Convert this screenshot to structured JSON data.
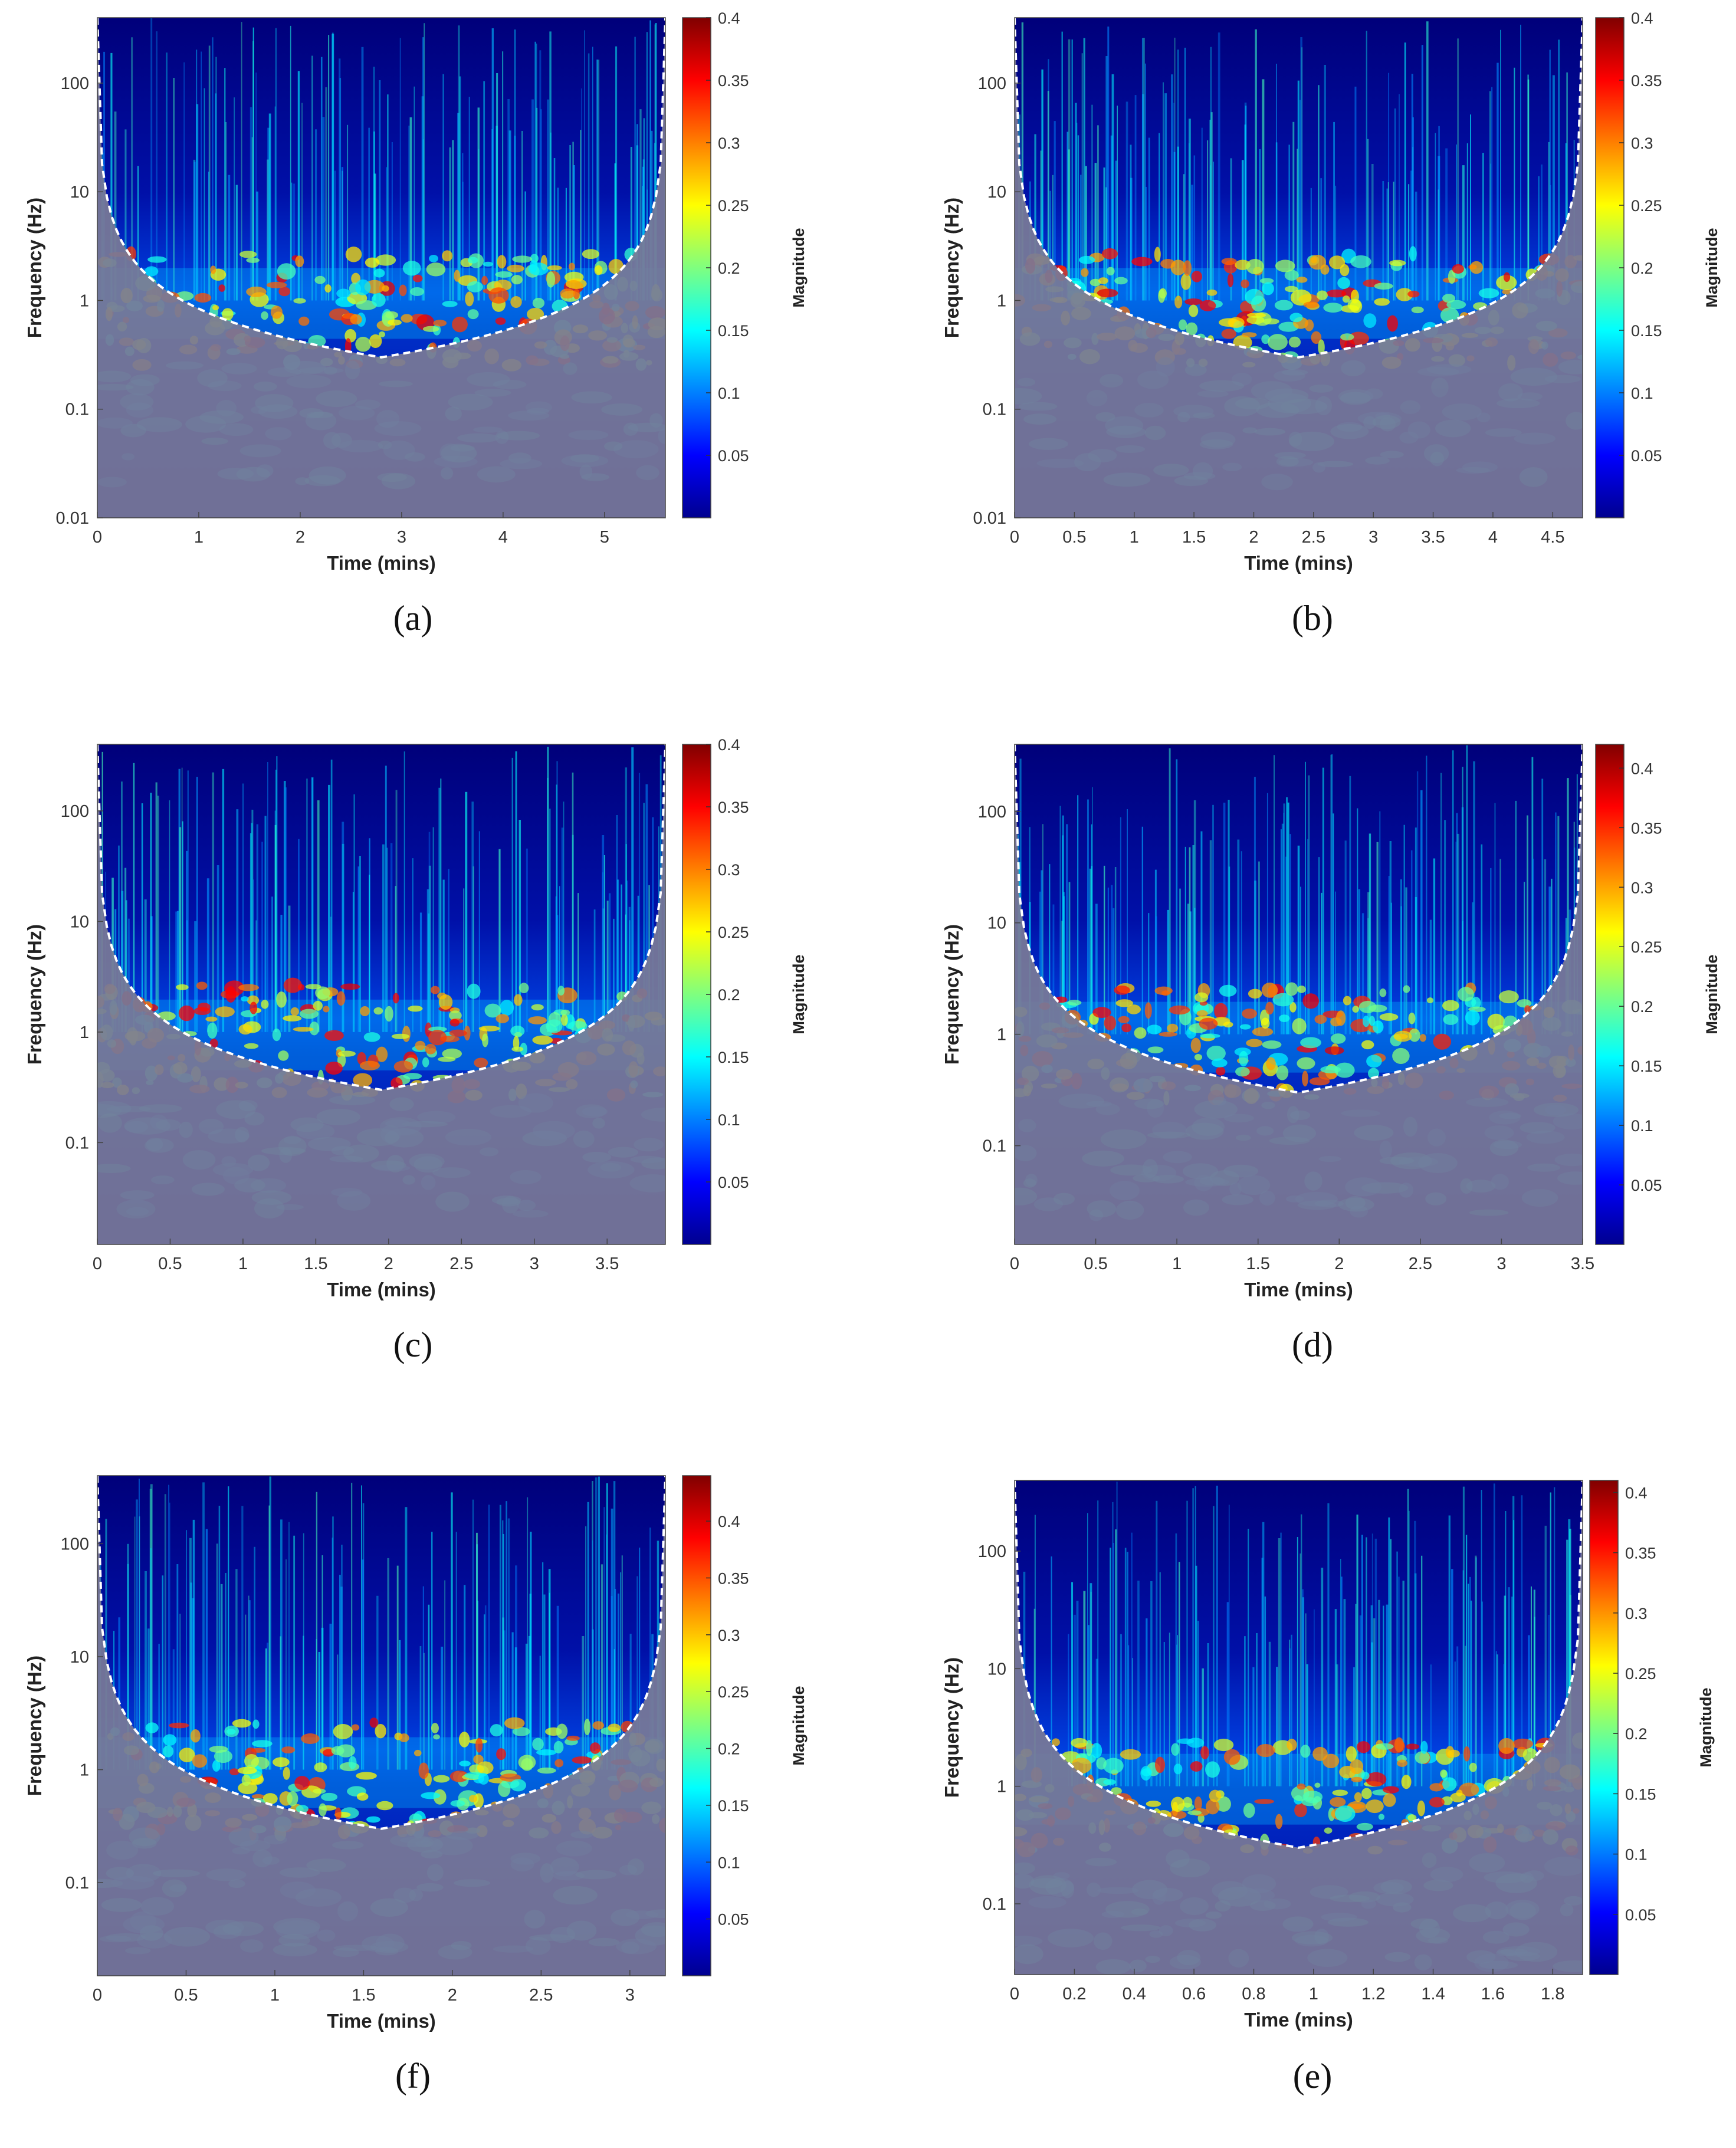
{
  "chart_data": [
    {
      "type": "heatmap",
      "caption": "(a)",
      "xlabel": "Time (mins)",
      "ylabel": "Frequency (Hz)",
      "colorbar_label": "Magnitude",
      "x_ticks": [
        "0",
        "1",
        "2",
        "3",
        "4",
        "5"
      ],
      "x_tick_values": [
        0,
        1,
        2,
        3,
        4,
        5
      ],
      "xlim": [
        0,
        5.6
      ],
      "y_scale": "log",
      "y_ticks": [
        "100",
        "10",
        "1",
        "0.1",
        "0.01"
      ],
      "y_tick_values": [
        100,
        10,
        1,
        0.1,
        0.01
      ],
      "ylim": [
        0.01,
        400
      ],
      "colorbar_ticks": [
        "0.4",
        "0.35",
        "0.3",
        "0.25",
        "0.2",
        "0.15",
        "0.1",
        "0.05"
      ],
      "colorbar_tick_values": [
        0.4,
        0.35,
        0.3,
        0.25,
        0.2,
        0.15,
        0.1,
        0.05
      ],
      "clim": [
        0,
        0.4
      ],
      "colormap": "jet",
      "cone_of_influence": "dashed white line, shaded gray outside"
    },
    {
      "type": "heatmap",
      "caption": "(b)",
      "xlabel": "Time (mins)",
      "ylabel": "Frequency (Hz)",
      "colorbar_label": "Magnitude",
      "x_ticks": [
        "0",
        "0.5",
        "1",
        "1.5",
        "2",
        "2.5",
        "3",
        "3.5",
        "4",
        "4.5"
      ],
      "x_tick_values": [
        0,
        0.5,
        1,
        1.5,
        2,
        2.5,
        3,
        3.5,
        4,
        4.5
      ],
      "xlim": [
        0,
        4.75
      ],
      "y_scale": "log",
      "y_ticks": [
        "100",
        "10",
        "1",
        "0.1",
        "0.01"
      ],
      "y_tick_values": [
        100,
        10,
        1,
        0.1,
        0.01
      ],
      "ylim": [
        0.01,
        400
      ],
      "colorbar_ticks": [
        "0.4",
        "0.35",
        "0.3",
        "0.25",
        "0.2",
        "0.15",
        "0.1",
        "0.05"
      ],
      "colorbar_tick_values": [
        0.4,
        0.35,
        0.3,
        0.25,
        0.2,
        0.15,
        0.1,
        0.05
      ],
      "clim": [
        0,
        0.4
      ],
      "colormap": "jet",
      "cone_of_influence": "dashed white line, shaded gray outside"
    },
    {
      "type": "heatmap",
      "caption": "(c)",
      "xlabel": "Time (mins)",
      "ylabel": "Frequency (Hz)",
      "colorbar_label": "Magnitude",
      "x_ticks": [
        "0",
        "0.5",
        "1",
        "1.5",
        "2",
        "2.5",
        "3",
        "3.5"
      ],
      "x_tick_values": [
        0,
        0.5,
        1,
        1.5,
        2,
        2.5,
        3,
        3.5
      ],
      "xlim": [
        0,
        3.9
      ],
      "y_scale": "log",
      "y_ticks": [
        "100",
        "10",
        "1",
        "0.1"
      ],
      "y_tick_values": [
        100,
        10,
        1,
        0.1
      ],
      "ylim": [
        0.012,
        400
      ],
      "colorbar_ticks": [
        "0.4",
        "0.35",
        "0.3",
        "0.25",
        "0.2",
        "0.15",
        "0.1",
        "0.05"
      ],
      "colorbar_tick_values": [
        0.4,
        0.35,
        0.3,
        0.25,
        0.2,
        0.15,
        0.1,
        0.05
      ],
      "clim": [
        0,
        0.4
      ],
      "colormap": "jet",
      "cone_of_influence": "dashed white line, shaded gray outside"
    },
    {
      "type": "heatmap",
      "caption": "(d)",
      "xlabel": "Time (mins)",
      "ylabel": "Frequency (Hz)",
      "colorbar_label": "Magnitude",
      "x_ticks": [
        "0",
        "0.5",
        "1",
        "1.5",
        "2",
        "2.5",
        "3",
        "3.5"
      ],
      "x_tick_values": [
        0,
        0.5,
        1,
        1.5,
        2,
        2.5,
        3,
        3.5
      ],
      "xlim": [
        0,
        3.5
      ],
      "y_scale": "log",
      "y_ticks": [
        "100",
        "10",
        "1",
        "0.1"
      ],
      "y_tick_values": [
        100,
        10,
        1,
        0.1
      ],
      "ylim": [
        0.013,
        400
      ],
      "colorbar_ticks": [
        "0.4",
        "0.35",
        "0.3",
        "0.25",
        "0.2",
        "0.15",
        "0.1",
        "0.05"
      ],
      "colorbar_tick_values": [
        0.4,
        0.35,
        0.3,
        0.25,
        0.2,
        0.15,
        0.1,
        0.05
      ],
      "clim": [
        0,
        0.42
      ],
      "colormap": "jet",
      "cone_of_influence": "dashed white line, shaded gray outside"
    },
    {
      "type": "heatmap",
      "caption": "(f)",
      "xlabel": "Time (mins)",
      "ylabel": "Frequency (Hz)",
      "colorbar_label": "Magnitude",
      "x_ticks": [
        "0",
        "0.5",
        "1",
        "1.5",
        "2",
        "2.5",
        "3"
      ],
      "x_tick_values": [
        0,
        0.5,
        1,
        1.5,
        2,
        2.5,
        3
      ],
      "xlim": [
        0,
        3.2
      ],
      "y_scale": "log",
      "y_ticks": [
        "100",
        "10",
        "1",
        "0.1"
      ],
      "y_tick_values": [
        100,
        10,
        1,
        0.1
      ],
      "ylim": [
        0.015,
        400
      ],
      "colorbar_ticks": [
        "0.4",
        "0.35",
        "0.3",
        "0.25",
        "0.2",
        "0.15",
        "0.1",
        "0.05"
      ],
      "colorbar_tick_values": [
        0.4,
        0.35,
        0.3,
        0.25,
        0.2,
        0.15,
        0.1,
        0.05
      ],
      "clim": [
        0,
        0.44
      ],
      "colormap": "jet",
      "cone_of_influence": "dashed white line, shaded gray outside"
    },
    {
      "type": "heatmap",
      "caption": "(e)",
      "xlabel": "Time (mins)",
      "ylabel": "Frequency (Hz)",
      "colorbar_label": "Magnitude",
      "x_ticks": [
        "0",
        "0.2",
        "0.4",
        "0.6",
        "0.8",
        "1",
        "1.2",
        "1.4",
        "1.6",
        "1.8"
      ],
      "x_tick_values": [
        0,
        0.2,
        0.4,
        0.6,
        0.8,
        1,
        1.2,
        1.4,
        1.6,
        1.8
      ],
      "xlim": [
        0,
        1.9
      ],
      "y_scale": "log",
      "y_ticks": [
        "100",
        "10",
        "1",
        "0.1"
      ],
      "y_tick_values": [
        100,
        10,
        1,
        0.1
      ],
      "ylim": [
        0.025,
        400
      ],
      "colorbar_ticks": [
        "0.4",
        "0.35",
        "0.3",
        "0.25",
        "0.2",
        "0.15",
        "0.1",
        "0.05"
      ],
      "colorbar_tick_values": [
        0.4,
        0.35,
        0.3,
        0.25,
        0.2,
        0.15,
        0.1,
        0.05
      ],
      "clim": [
        0,
        0.41
      ],
      "colormap": "jet",
      "cone_of_influence": "dashed white line, shaded gray outside"
    }
  ]
}
